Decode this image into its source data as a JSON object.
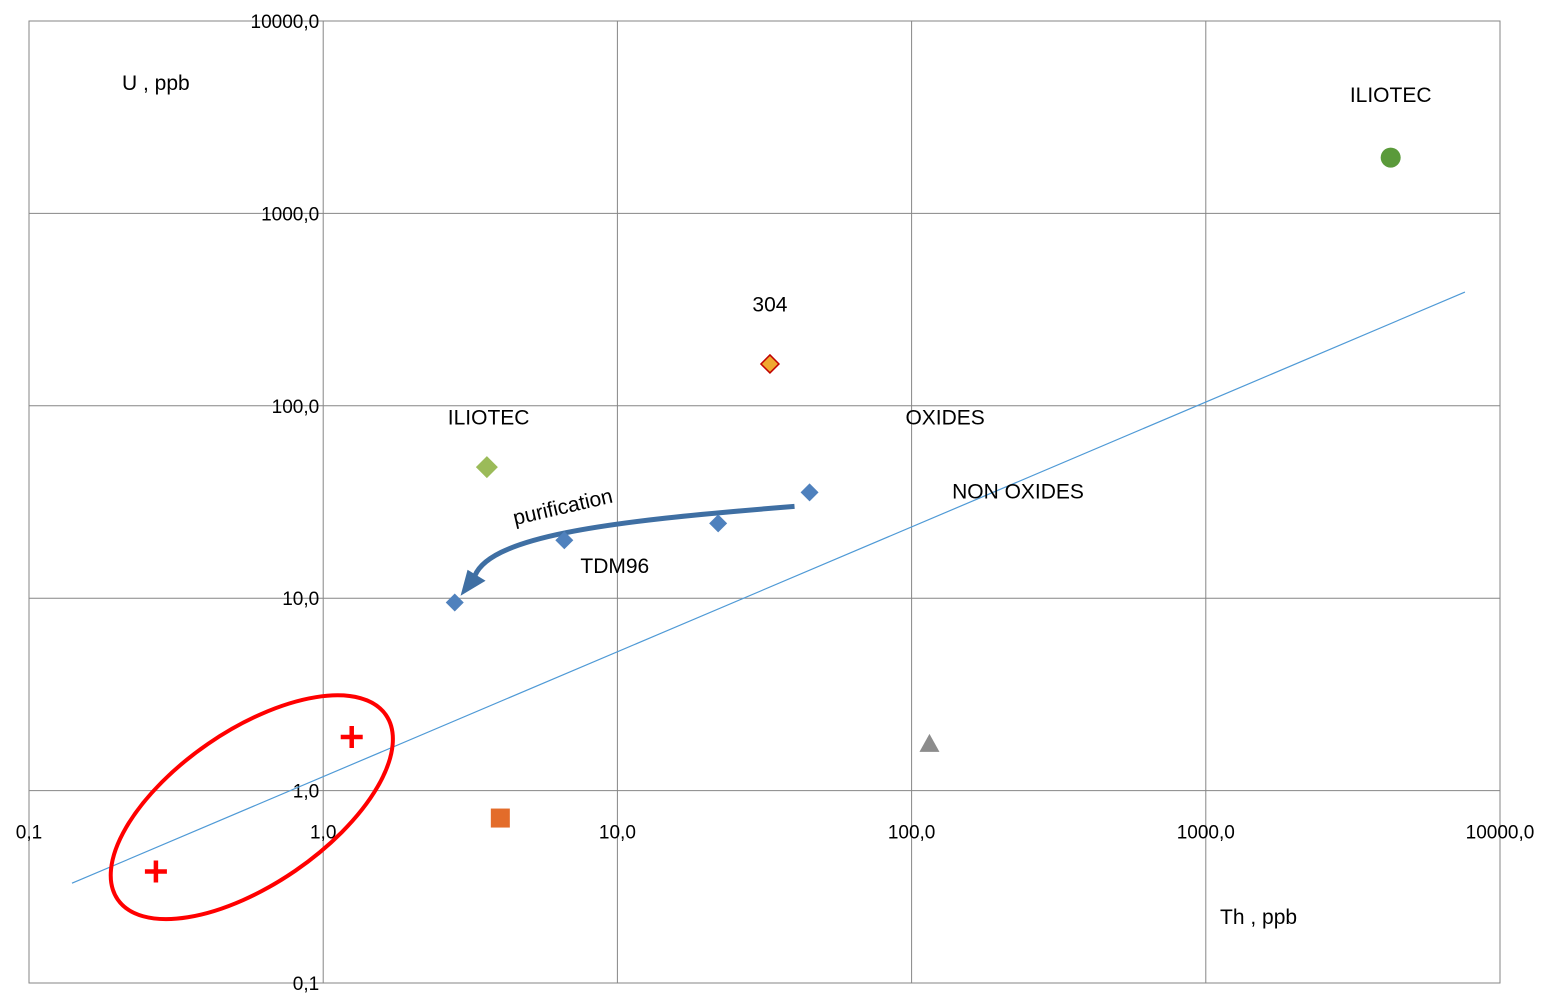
{
  "chart_data": {
    "type": "scatter",
    "x_scale": "log",
    "y_scale": "log",
    "xlim": [
      0.1,
      10000
    ],
    "ylim": [
      0.1,
      10000
    ],
    "grid": true,
    "legend": "none",
    "xlabel": "Th , ppb",
    "ylabel": "U , ppb",
    "x_tick_labels": [
      "0,1",
      "1,0",
      "10,0",
      "100,0",
      "1000,0",
      "10000,0"
    ],
    "y_tick_labels": [
      "0,1",
      "1,0",
      "10,0",
      "100,0",
      "1000,0",
      "10000,0"
    ],
    "x_tick_values": [
      0.1,
      1,
      10,
      100,
      1000,
      10000
    ],
    "y_tick_values": [
      0.1,
      1,
      10,
      100,
      1000,
      10000
    ],
    "series": [
      {
        "values": [
          {
            "x": 2.8,
            "y": 9.5
          },
          {
            "x": 6.6,
            "y": 20
          },
          {
            "x": 22,
            "y": 24.5
          },
          {
            "x": 45,
            "y": 35.5
          }
        ],
        "marker": "diamond",
        "color": "#4f81bd"
      },
      {
        "values": [
          {
            "x": 3.6,
            "y": 48
          }
        ],
        "marker": "diamond",
        "color": "#9bbb59"
      },
      {
        "values": [
          {
            "x": 33,
            "y": 165
          }
        ],
        "marker": "diamond",
        "color": "#f0a830",
        "edge_color": "#c00000"
      },
      {
        "values": [
          {
            "x": 4250,
            "y": 1950
          }
        ],
        "marker": "circle",
        "color": "#5a9a3a"
      },
      {
        "values": [
          {
            "x": 115,
            "y": 1.75
          }
        ],
        "marker": "triangle",
        "color": "#8c8c8c"
      },
      {
        "values": [
          {
            "x": 4.0,
            "y": 0.72
          }
        ],
        "marker": "square",
        "color": "#e36c2a"
      },
      {
        "values": [
          {
            "x": 1.25,
            "y": 1.9
          },
          {
            "x": 0.27,
            "y": 0.38
          }
        ],
        "marker": "plus",
        "color": "#ff0000"
      }
    ],
    "trend_line": {
      "from": {
        "x": 0.14,
        "y": 0.33
      },
      "to": {
        "x": 7600,
        "y": 390
      },
      "color": "#4f9ad6"
    },
    "purification_arrow": {
      "from": {
        "x": 40,
        "y": 30
      },
      "to": {
        "x": 3.0,
        "y": 10.8
      },
      "color": "#3f6fa3"
    },
    "highlight_ellipse": {
      "color": "#ff0000",
      "note": "encloses the two plus markers"
    },
    "annotations": [
      {
        "text": "ILIOTEC",
        "x": 3.65,
        "y": 80
      },
      {
        "text": "ILIOTEC",
        "x": 4250,
        "y": 3800
      },
      {
        "text": "304",
        "x": 33,
        "y": 310
      },
      {
        "text": "OXIDES",
        "x": 130,
        "y": 80
      },
      {
        "text": "NON OXIDES",
        "x": 230,
        "y": 33
      },
      {
        "text": "TDM96",
        "x": 9.8,
        "y": 13.5
      },
      {
        "text": "purification",
        "x": 6.6,
        "y": 27.5
      }
    ]
  }
}
